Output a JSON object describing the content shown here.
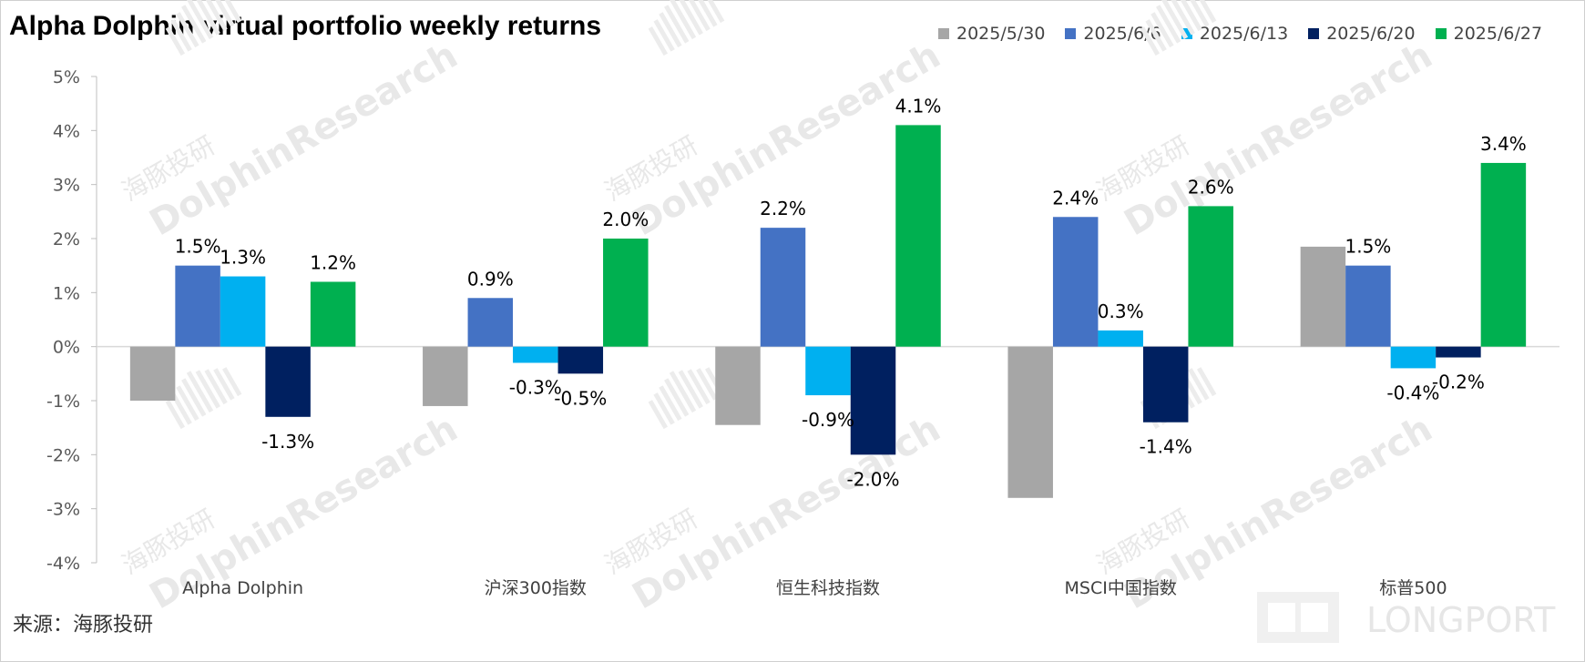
{
  "title": "Alpha Dolphin virtual portfolio weekly returns",
  "source": "来源：海豚投研",
  "watermark": {
    "text": "DolphinResearch",
    "text_cn": "海豚投研",
    "brand": "LONGPORT"
  },
  "colors": {
    "2025/5/30": "#a6a6a6",
    "2025/6/6": "#4472c4",
    "2025/6/13": "#00b0f0",
    "2025/6/20": "#002060",
    "2025/6/27": "#00b050"
  },
  "chart_data": {
    "type": "bar",
    "title": "Alpha Dolphin virtual portfolio weekly returns",
    "categories": [
      "Alpha Dolphin",
      "沪深300指数",
      "恒生科技指数",
      "MSCI中国指数",
      "标普500"
    ],
    "series": [
      {
        "name": "2025/5/30",
        "values": [
          -1.0,
          -1.1,
          -1.45,
          -2.8,
          1.85
        ],
        "labels": [
          "",
          "",
          "",
          "",
          ""
        ]
      },
      {
        "name": "2025/6/6",
        "values": [
          1.5,
          0.9,
          2.2,
          2.4,
          1.5
        ],
        "labels": [
          "1.5%",
          "0.9%",
          "2.2%",
          "2.4%",
          "1.5%"
        ]
      },
      {
        "name": "2025/6/13",
        "values": [
          1.3,
          -0.3,
          -0.9,
          0.3,
          -0.4
        ],
        "labels": [
          "1.3%",
          "-0.3%",
          "-0.9%",
          "0.3%",
          "-0.4%"
        ]
      },
      {
        "name": "2025/6/20",
        "values": [
          -1.3,
          -0.5,
          -2.0,
          -1.4,
          -0.2
        ],
        "labels": [
          "-1.3%",
          "-0.5%",
          "-2.0%",
          "-1.4%",
          "-0.2%"
        ]
      },
      {
        "name": "2025/6/27",
        "values": [
          1.2,
          2.0,
          4.1,
          2.6,
          3.4
        ],
        "labels": [
          "1.2%",
          "2.0%",
          "4.1%",
          "2.6%",
          "3.4%"
        ]
      }
    ],
    "ylim": [
      -4,
      5
    ],
    "yticks": [
      "-4%",
      "-3%",
      "-2%",
      "-1%",
      "0%",
      "1%",
      "2%",
      "3%",
      "4%",
      "5%"
    ],
    "legend": "top-right",
    "grid": false
  }
}
